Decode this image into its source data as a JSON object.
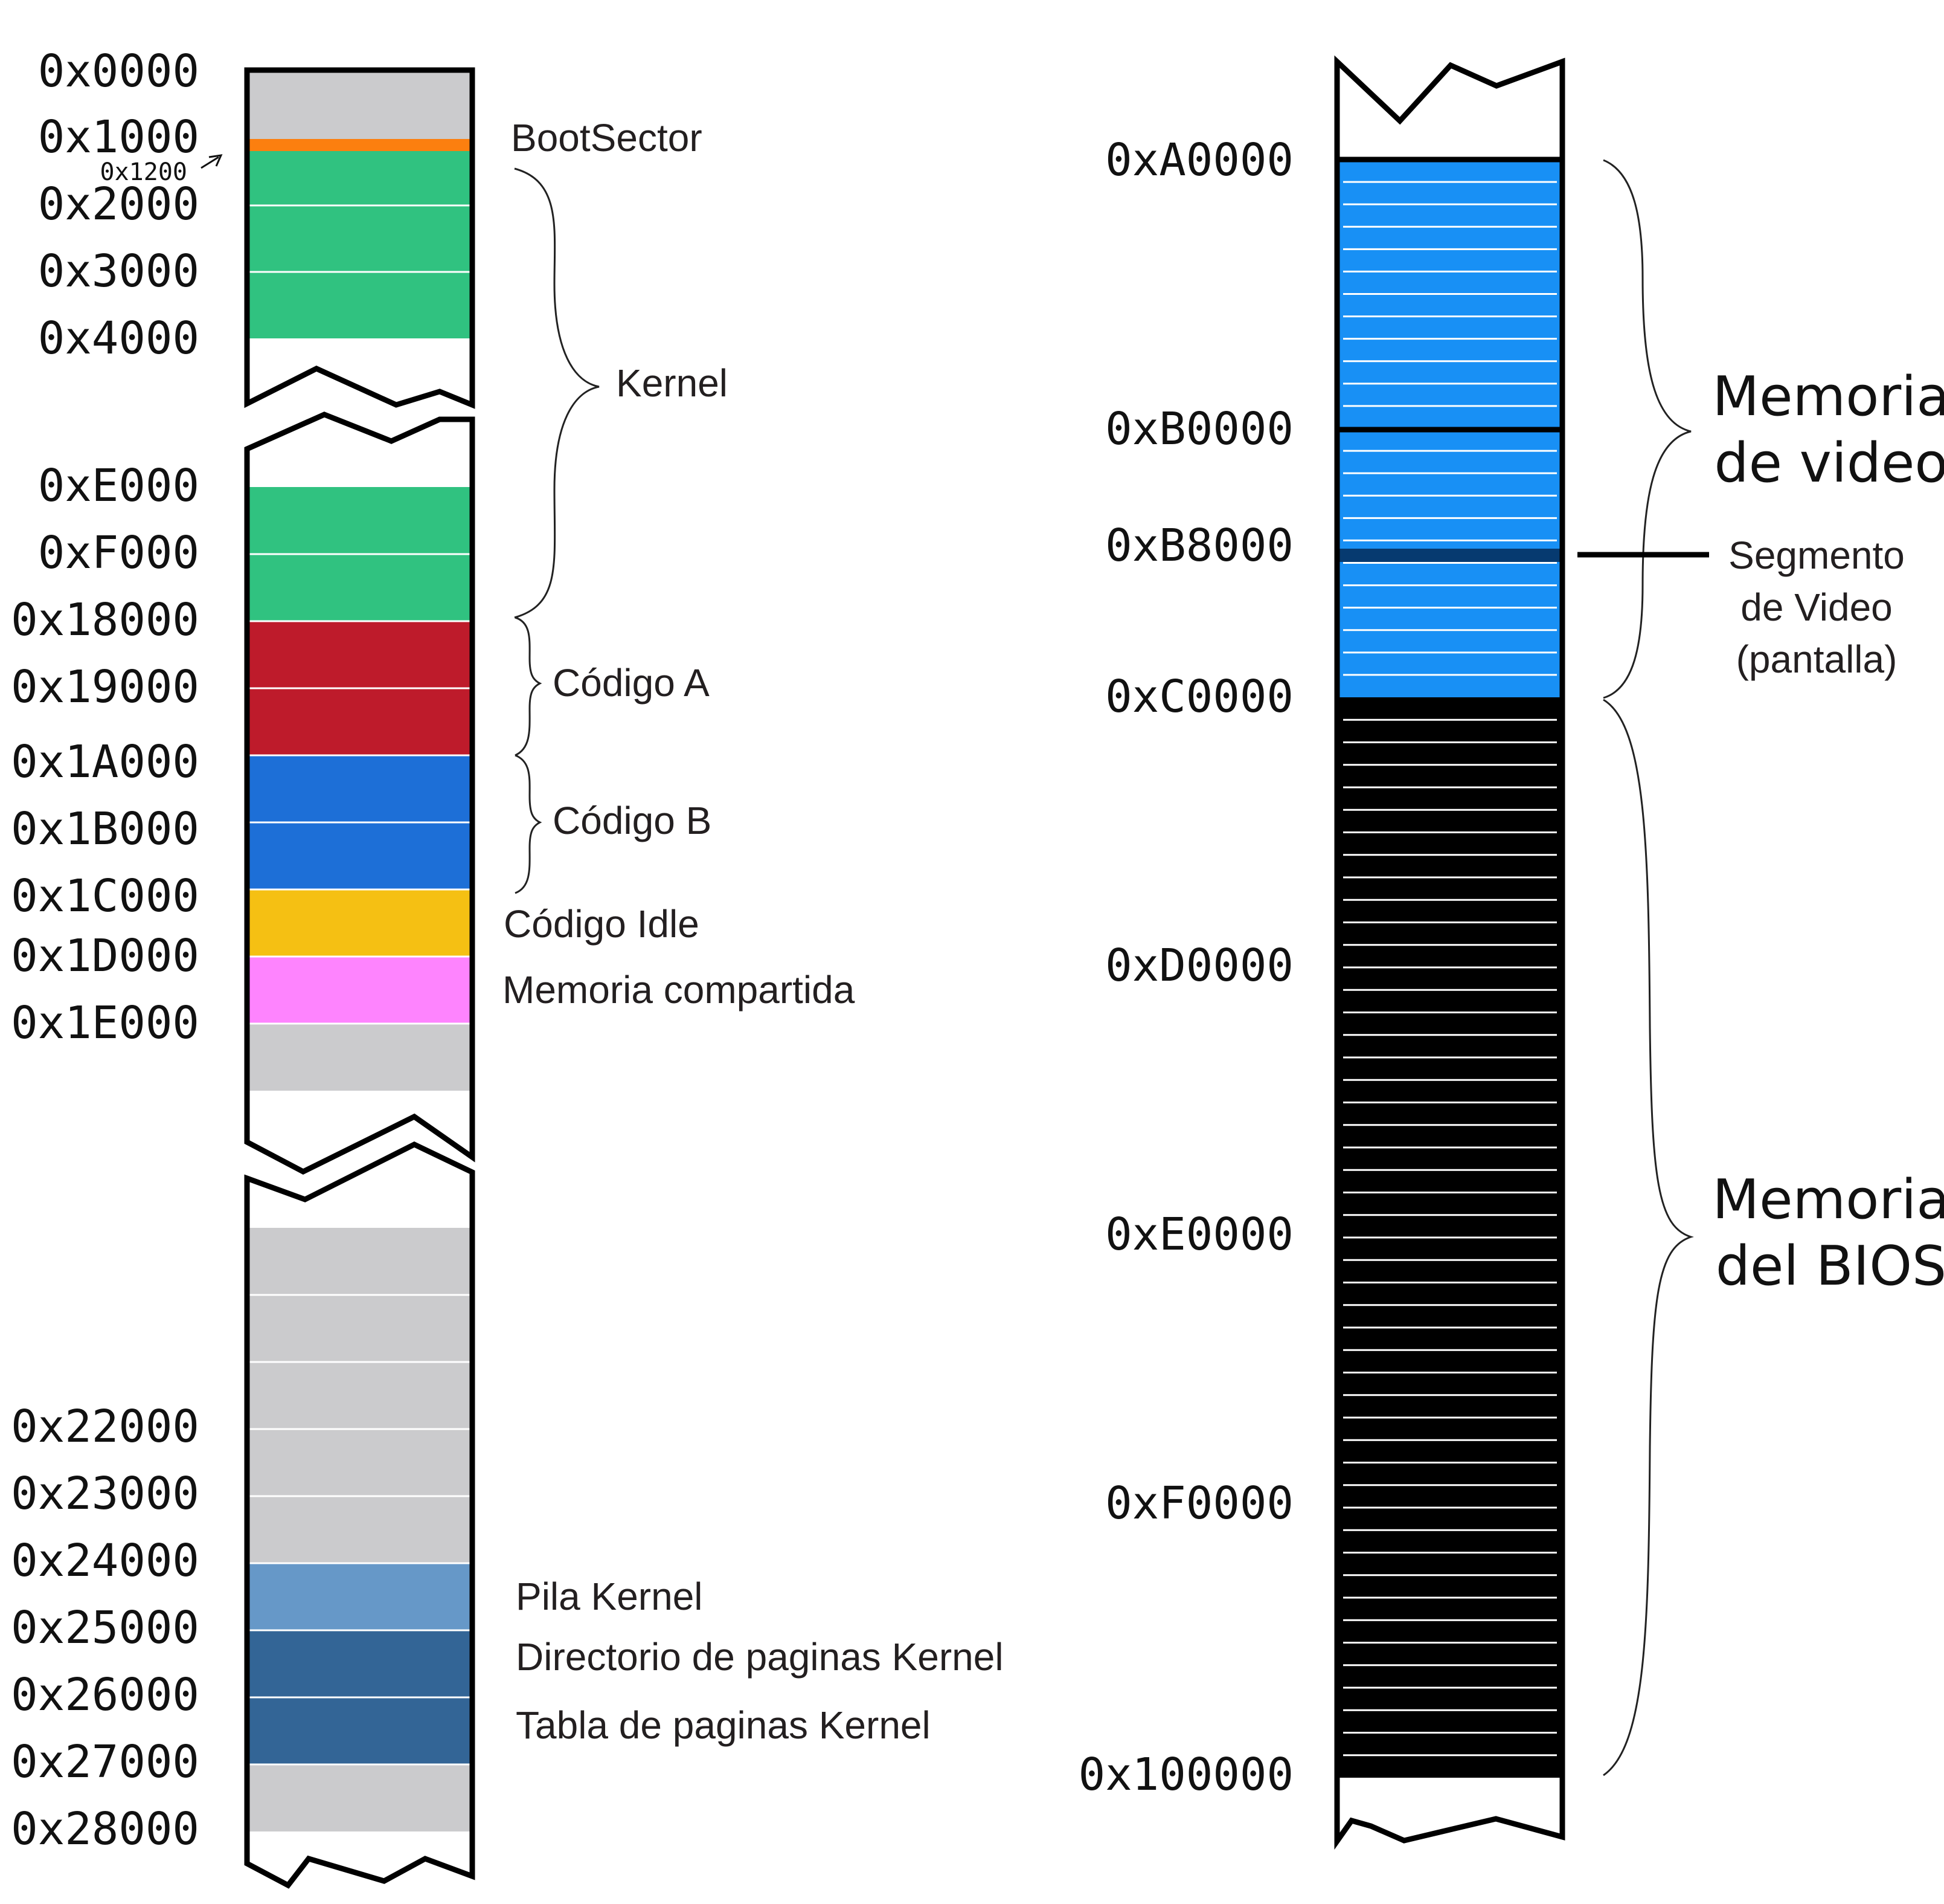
{
  "colors": {
    "gray": "#cbcbcd",
    "orange": "#fc7f0f",
    "green": "#30c280",
    "red": "#be1b2b",
    "blue": "#1d6fd7",
    "yellow": "#f5c013",
    "pink": "#fe84fe",
    "lightsteel": "#6698c8",
    "steel": "#336596",
    "video": "#1890f5",
    "videodark": "#063a70",
    "bios": "#000000"
  },
  "left_column": {
    "segment_1": {
      "addresses": [
        "0x0000",
        "0x1000",
        "0x2000",
        "0x3000",
        "0x4000"
      ],
      "small_address": "0x1200",
      "blocks": [
        "gray",
        "orange",
        "green",
        "green",
        "green"
      ]
    },
    "segment_2": {
      "addresses": [
        "0xE000",
        "0xF000",
        "0x18000",
        "0x19000",
        "0x1A000",
        "0x1B000",
        "0x1C000",
        "0x1D000",
        "0x1E000"
      ],
      "blocks": [
        "green",
        "green",
        "red",
        "red",
        "blue",
        "blue",
        "yellow",
        "pink",
        "gray"
      ]
    },
    "segment_3": {
      "addresses": [
        "0x22000",
        "0x23000",
        "0x24000",
        "0x25000",
        "0x26000",
        "0x27000",
        "0x28000"
      ],
      "blocks": [
        "gray",
        "gray",
        "gray",
        "gray",
        "gray",
        "lightsteel",
        "steel",
        "steel",
        "gray"
      ]
    }
  },
  "left_labels": {
    "bootsector": "BootSector",
    "kernel": "Kernel",
    "codigo_a": "Código A",
    "codigo_b": "Código B",
    "codigo_idle": "Código Idle",
    "memoria_compartida": "Memoria compartida",
    "pila_kernel": "Pila Kernel",
    "directorio": "Directorio de paginas Kernel",
    "tabla": "Tabla de paginas Kernel"
  },
  "right_column": {
    "addresses": [
      "0xA0000",
      "0xB0000",
      "0xB8000",
      "0xC0000",
      "0xD0000",
      "0xE0000",
      "0xF0000",
      "0x100000"
    ],
    "video_stripes": 24,
    "bios_stripes": 48
  },
  "right_labels": {
    "memoria_video_1": "Memoria",
    "memoria_video_2": "de video",
    "segmento_1": "Segmento",
    "segmento_2": "de Video",
    "segmento_3": "(pantalla)",
    "memoria_bios_1": "Memoria",
    "memoria_bios_2": "del BIOS"
  }
}
